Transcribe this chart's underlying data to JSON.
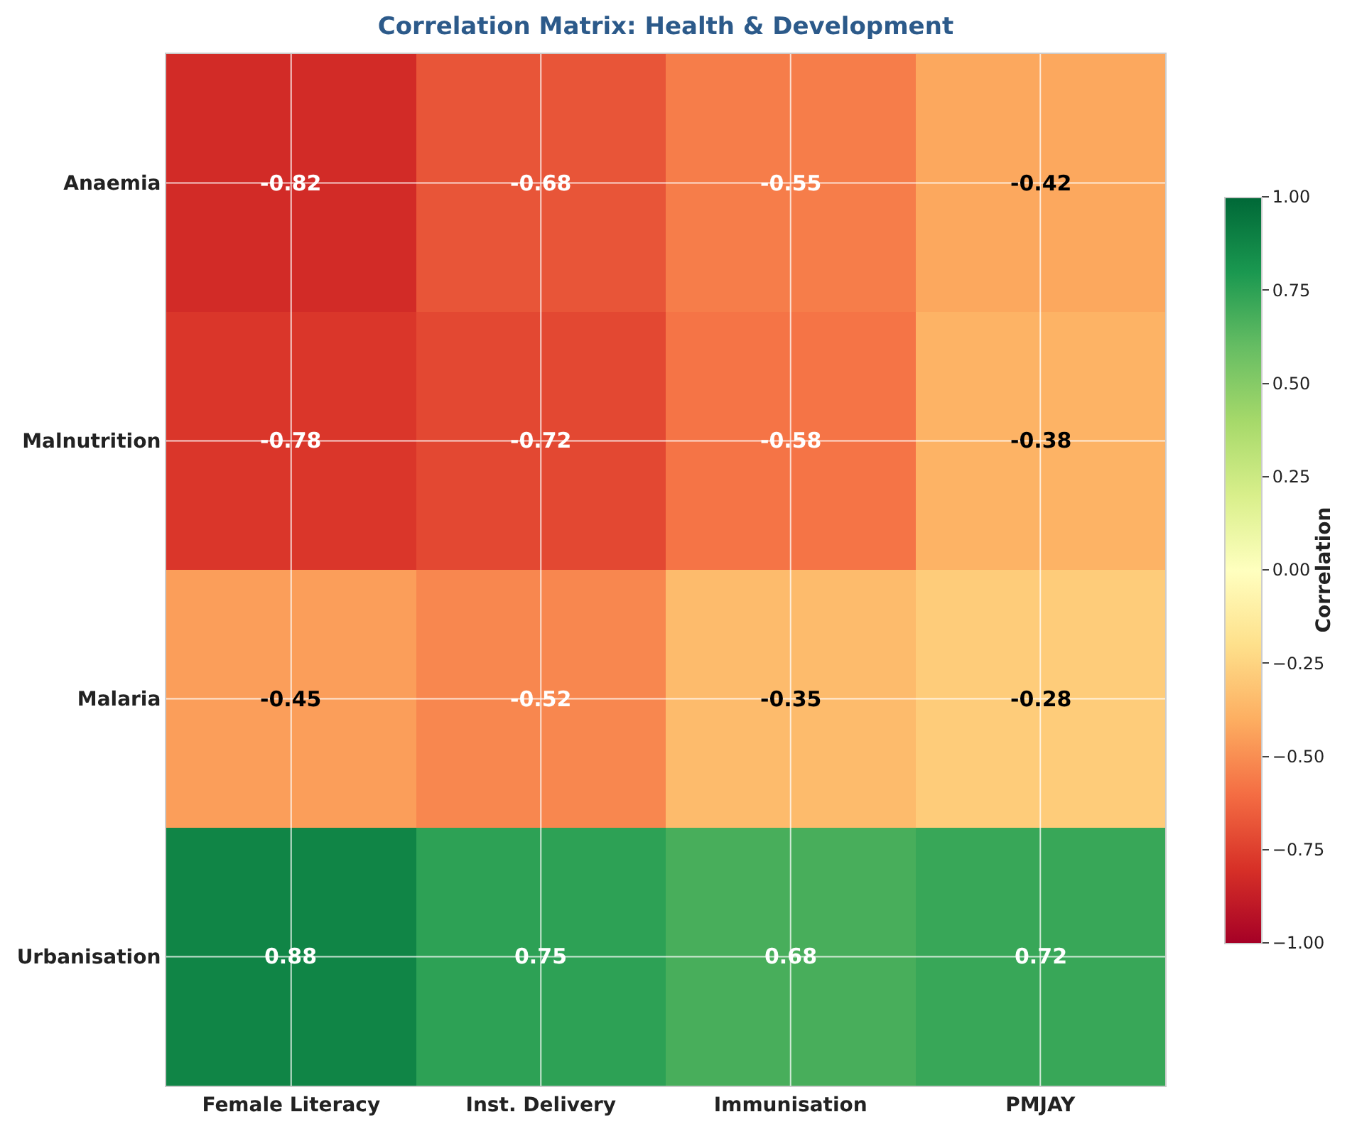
{
  "chart_data": {
    "type": "heatmap",
    "title": "Correlation Matrix: Health & Development",
    "categories": [
      "Female Literacy",
      "Inst. Delivery",
      "Immunisation",
      "PMJAY"
    ],
    "y_categories": [
      "Anaemia",
      "Malnutrition",
      "Malaria",
      "Urbanisation"
    ],
    "cells": [
      [
        -0.82,
        -0.68,
        -0.55,
        -0.42
      ],
      [
        -0.78,
        -0.72,
        -0.58,
        -0.38
      ],
      [
        -0.45,
        -0.52,
        -0.35,
        -0.28
      ],
      [
        0.88,
        0.75,
        0.68,
        0.72
      ]
    ],
    "data_labels": true,
    "clabel": "Correlation",
    "clim": [
      -1,
      1
    ],
    "cticks": [
      {
        "value": -1,
        "label": "−1.00"
      },
      {
        "value": -0.75,
        "label": "−0.75"
      },
      {
        "value": -0.5,
        "label": "−0.50"
      },
      {
        "value": -0.25,
        "label": "−0.25"
      },
      {
        "value": 0,
        "label": "0.00"
      },
      {
        "value": 0.25,
        "label": "0.25"
      },
      {
        "value": 0.5,
        "label": "0.50"
      },
      {
        "value": 0.75,
        "label": "0.75"
      },
      {
        "value": 1,
        "label": "1.00"
      }
    ],
    "grid": true
  }
}
